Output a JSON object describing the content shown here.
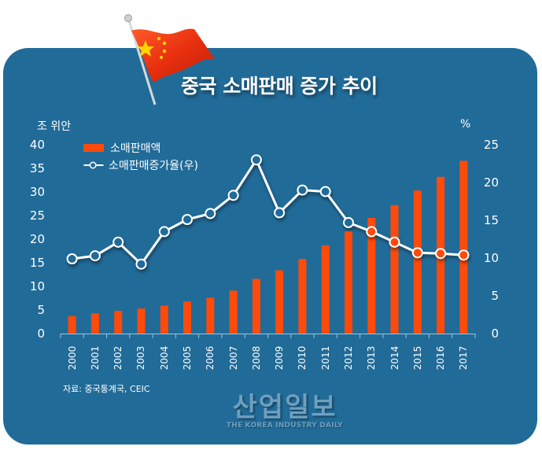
{
  "title": "중국 소매판매 증가 추이",
  "left_axis_unit": "조 위안",
  "right_axis_unit": "%",
  "legend": {
    "bar_label": "소매판매액",
    "line_label": "소매판매증가율(우)"
  },
  "source": "자료: 중국통계국, CEIC",
  "logo": {
    "main": "산업일보",
    "sub": "THE KOREA INDUSTRY DAILY"
  },
  "colors": {
    "background_panel": "#216b98",
    "bar": "#ff4a0a",
    "line": "#ffffff",
    "text": "#ffffff"
  },
  "left_ticks": [
    "40",
    "35",
    "30",
    "25",
    "20",
    "15",
    "10",
    "5",
    "0"
  ],
  "right_ticks": [
    "25",
    "20",
    "15",
    "10",
    "5",
    "0"
  ],
  "chart_data": {
    "type": "bar+line",
    "title": "중국 소매판매 증가 추이",
    "xlabel": "",
    "ylabel": "조 위안",
    "y2label": "%",
    "ylim": [
      0,
      40
    ],
    "y2lim": [
      0,
      25
    ],
    "categories": [
      "2000",
      "2001",
      "2002",
      "2003",
      "2004",
      "2005",
      "2006",
      "2007",
      "2008",
      "2009",
      "2010",
      "2011",
      "2012",
      "2013",
      "2014",
      "2015",
      "2016",
      "2017"
    ],
    "series": [
      {
        "name": "소매판매액",
        "type": "bar",
        "axis": "left",
        "values": [
          3.7,
          4.3,
          4.8,
          5.3,
          5.9,
          6.8,
          7.6,
          9.1,
          11.6,
          13.4,
          15.8,
          18.7,
          21.7,
          24.5,
          27.2,
          30.3,
          33.2,
          36.6
        ]
      },
      {
        "name": "소매판매증가율(우)",
        "type": "line",
        "axis": "right",
        "values": [
          9.9,
          10.3,
          12.1,
          9.2,
          13.5,
          15.1,
          15.9,
          18.3,
          23.0,
          16.0,
          19.0,
          18.8,
          14.7,
          13.5,
          12.1,
          10.7,
          10.6,
          10.4
        ]
      }
    ],
    "grid": false,
    "legend_position": "top-left"
  }
}
